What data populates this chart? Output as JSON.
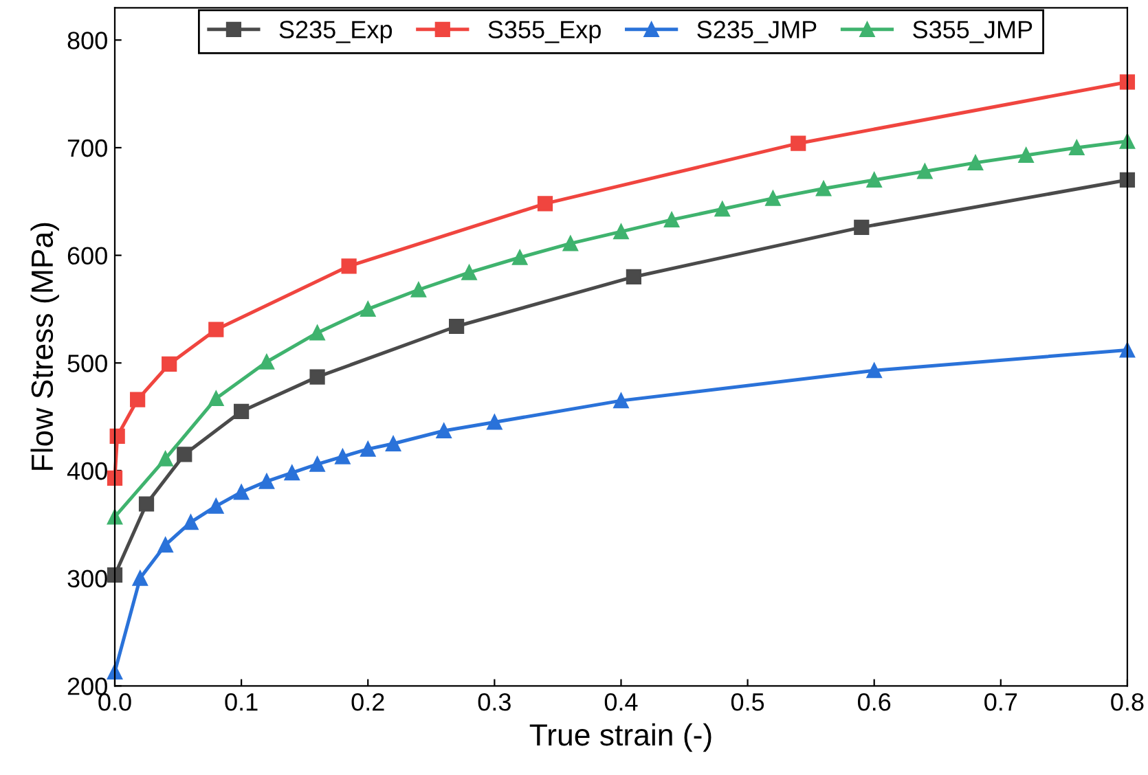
{
  "chart_data": {
    "type": "line",
    "xlabel": "True strain (-)",
    "ylabel": "Flow Stress (MPa)",
    "xlim": [
      0,
      0.8
    ],
    "xticks": [
      {
        "value": 0,
        "label": "0.0"
      },
      0.1,
      0.2,
      0.3,
      0.4,
      0.5,
      0.6,
      0.7,
      0.8
    ],
    "ylim": [
      200,
      830
    ],
    "yticks": [
      200,
      300,
      400,
      500,
      600,
      700,
      800
    ],
    "grid": false,
    "legend": "top",
    "line_style": "solid",
    "series": [
      {
        "name": "S235_Exp",
        "color": "#4a4a4a",
        "marker": "square",
        "x": [
          0,
          0.025,
          0.055,
          0.1,
          0.16,
          0.27,
          0.41,
          0.59,
          0.8
        ],
        "values": [
          303,
          369,
          415,
          455,
          487,
          534,
          580,
          626,
          670
        ]
      },
      {
        "name": "S355_Exp",
        "color": "#f0453f",
        "marker": "square",
        "x": [
          0,
          0.002,
          0.018,
          0.043,
          0.08,
          0.185,
          0.34,
          0.54,
          0.8
        ],
        "values": [
          393,
          432,
          466,
          499,
          531,
          590,
          648,
          704,
          761
        ]
      },
      {
        "name": "S235_JMP",
        "color": "#2a72d9",
        "marker": "triangle",
        "x": [
          0,
          0.02,
          0.04,
          0.06,
          0.08,
          0.1,
          0.12,
          0.14,
          0.16,
          0.18,
          0.2,
          0.22,
          0.26,
          0.3,
          0.4,
          0.6,
          0.8
        ],
        "values": [
          213,
          300,
          331,
          352,
          367,
          380,
          390,
          398,
          406,
          413,
          420,
          425,
          437,
          445,
          465,
          493,
          512
        ]
      },
      {
        "name": "S355_JMP",
        "color": "#3fb36e",
        "marker": "triangle",
        "x": [
          0,
          0.04,
          0.08,
          0.12,
          0.16,
          0.2,
          0.24,
          0.28,
          0.32,
          0.36,
          0.4,
          0.44,
          0.48,
          0.52,
          0.56,
          0.6,
          0.64,
          0.68,
          0.72,
          0.76,
          0.8
        ],
        "values": [
          357,
          411,
          467,
          501,
          528,
          550,
          568,
          584,
          598,
          611,
          622,
          633,
          643,
          653,
          662,
          670,
          678,
          686,
          693,
          700,
          706
        ]
      }
    ]
  }
}
